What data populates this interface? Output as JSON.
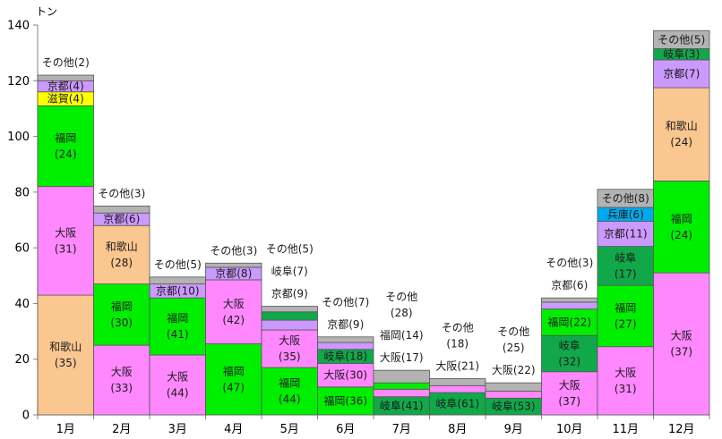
{
  "chart_data": {
    "type": "bar",
    "stacked": true,
    "ylabel": "トン",
    "ylim": [
      0,
      140
    ],
    "yticks": [
      0,
      20,
      40,
      60,
      80,
      100,
      120,
      140
    ],
    "grid": false,
    "colors": {
      "和歌山": "#fac791",
      "大阪": "#ff88ff",
      "福岡": "#00ee00",
      "岐阜": "#11a84a",
      "京都": "#cc99ff",
      "滋賀": "#ffff00",
      "兵庫": "#00aaee",
      "その他": "#b3b3b3"
    },
    "categories": [
      "1月",
      "2月",
      "3月",
      "4月",
      "5月",
      "6月",
      "7月",
      "8月",
      "9月",
      "10月",
      "11月",
      "12月"
    ],
    "stacks": [
      {
        "month": "1月",
        "segments": [
          {
            "name": "和歌山",
            "value": 43,
            "label": "和歌山|(35)"
          },
          {
            "name": "大阪",
            "value": 39,
            "label": "大阪|(31)"
          },
          {
            "name": "福岡",
            "value": 29,
            "label": "福岡|(24)"
          },
          {
            "name": "滋賀",
            "value": 5,
            "label": "滋賀(4)"
          },
          {
            "name": "京都",
            "value": 4,
            "label": "京都(4)"
          },
          {
            "name": "その他",
            "value": 2,
            "label": "その他(2)",
            "outside": true
          }
        ]
      },
      {
        "month": "2月",
        "segments": [
          {
            "name": "大阪",
            "value": 25,
            "label": "大阪|(33)"
          },
          {
            "name": "福岡",
            "value": 22,
            "label": "福岡|(30)"
          },
          {
            "name": "和歌山",
            "value": 21,
            "label": "和歌山|(28)"
          },
          {
            "name": "京都",
            "value": 4.5,
            "label": "京都(6)"
          },
          {
            "name": "その他",
            "value": 2.5,
            "label": "その他(3)",
            "outside": true
          }
        ]
      },
      {
        "month": "3月",
        "segments": [
          {
            "name": "大阪",
            "value": 21.5,
            "label": "大阪|(44)"
          },
          {
            "name": "福岡",
            "value": 20.5,
            "label": "福岡|(41)"
          },
          {
            "name": "京都",
            "value": 5,
            "label": "京都(10)"
          },
          {
            "name": "その他",
            "value": 2.5,
            "label": "その他(5)",
            "outside": true
          }
        ]
      },
      {
        "month": "4月",
        "segments": [
          {
            "name": "福岡",
            "value": 25.5,
            "label": "福岡|(47)"
          },
          {
            "name": "大阪",
            "value": 23,
            "label": "大阪|(42)"
          },
          {
            "name": "京都",
            "value": 4.5,
            "label": "京都(8)"
          },
          {
            "name": "その他",
            "value": 1.5,
            "label": "その他(3)",
            "outside": true
          }
        ]
      },
      {
        "month": "5月",
        "segments": [
          {
            "name": "福岡",
            "value": 17,
            "label": "福岡|(44)"
          },
          {
            "name": "大阪",
            "value": 13.5,
            "label": "大阪|(35)"
          },
          {
            "name": "京都",
            "value": 3.5,
            "label": "京都(9)",
            "outside": true
          },
          {
            "name": "岐阜",
            "value": 3,
            "label": "岐阜(7)",
            "outside": true
          },
          {
            "name": "その他",
            "value": 2,
            "label": "その他(5)",
            "outside": true
          }
        ]
      },
      {
        "month": "6月",
        "segments": [
          {
            "name": "福岡",
            "value": 10,
            "label": "福岡(36)"
          },
          {
            "name": "大阪",
            "value": 8.5,
            "label": "大阪(30)"
          },
          {
            "name": "岐阜",
            "value": 5,
            "label": "岐阜(18)"
          },
          {
            "name": "京都",
            "value": 2.5,
            "label": "京都(9)",
            "outside": true
          },
          {
            "name": "その他",
            "value": 2,
            "label": "その他(7)",
            "outside": true
          }
        ]
      },
      {
        "month": "7月",
        "segments": [
          {
            "name": "岐阜",
            "value": 6.5,
            "label": "岐阜(41)"
          },
          {
            "name": "大阪",
            "value": 2.7,
            "label": "大阪(17)",
            "outside": true
          },
          {
            "name": "福岡",
            "value": 2.3,
            "label": "福岡(14)",
            "outside": true
          },
          {
            "name": "その他",
            "value": 4.5,
            "label": "その他|(28)",
            "outside": true
          }
        ]
      },
      {
        "month": "8月",
        "segments": [
          {
            "name": "岐阜",
            "value": 8,
            "label": "岐阜(61)"
          },
          {
            "name": "大阪",
            "value": 2.5,
            "label": "大阪(21)",
            "outside": true
          },
          {
            "name": "その他",
            "value": 2.5,
            "label": "その他|(18)",
            "outside": true
          }
        ]
      },
      {
        "month": "9月",
        "segments": [
          {
            "name": "岐阜",
            "value": 6,
            "label": "岐阜(53)"
          },
          {
            "name": "大阪",
            "value": 2.5,
            "label": "大阪(22)",
            "outside": true
          },
          {
            "name": "その他",
            "value": 3,
            "label": "その他|(25)",
            "outside": true
          }
        ]
      },
      {
        "month": "10月",
        "segments": [
          {
            "name": "大阪",
            "value": 15.5,
            "label": "大阪|(37)"
          },
          {
            "name": "岐阜",
            "value": 13,
            "label": "岐阜|(32)"
          },
          {
            "name": "福岡",
            "value": 9.5,
            "label": "福岡(22)"
          },
          {
            "name": "京都",
            "value": 2.5,
            "label": "京都(6)",
            "outside": true
          },
          {
            "name": "その他",
            "value": 1.5,
            "label": "その他(3)",
            "outside": true
          }
        ]
      },
      {
        "month": "11月",
        "segments": [
          {
            "name": "大阪",
            "value": 24.5,
            "label": "大阪|(31)"
          },
          {
            "name": "福岡",
            "value": 22,
            "label": "福岡|(27)"
          },
          {
            "name": "岐阜",
            "value": 14,
            "label": "岐阜|(17)"
          },
          {
            "name": "京都",
            "value": 9,
            "label": "京都(11)"
          },
          {
            "name": "兵庫",
            "value": 5,
            "label": "兵庫(6)"
          },
          {
            "name": "その他",
            "value": 6.5,
            "label": "その他(8)"
          }
        ]
      },
      {
        "month": "12月",
        "segments": [
          {
            "name": "大阪",
            "value": 51,
            "label": "大阪|(37)"
          },
          {
            "name": "福岡",
            "value": 33,
            "label": "福岡|(24)"
          },
          {
            "name": "和歌山",
            "value": 33.5,
            "label": "和歌山|(24)"
          },
          {
            "name": "京都",
            "value": 10,
            "label": "京都(7)"
          },
          {
            "name": "岐阜",
            "value": 4,
            "label": "岐阜(3)"
          },
          {
            "name": "その他",
            "value": 6.5,
            "label": "その他(5)"
          }
        ]
      }
    ]
  }
}
